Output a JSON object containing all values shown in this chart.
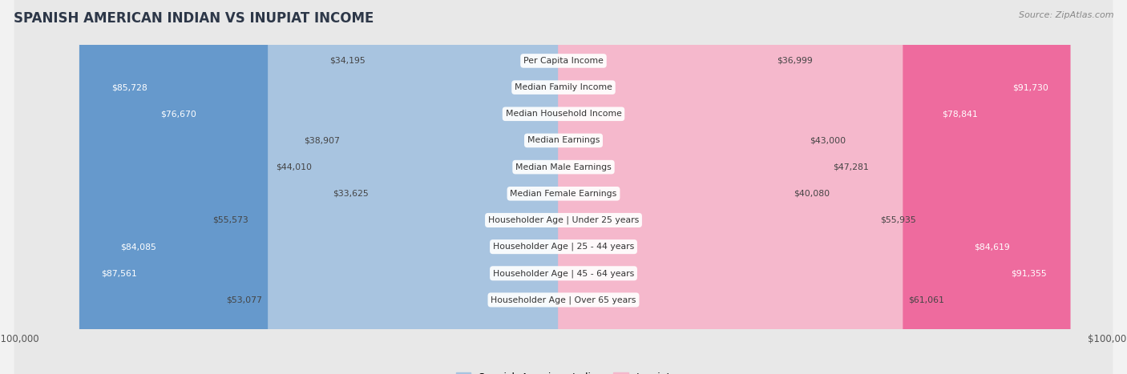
{
  "title": "SPANISH AMERICAN INDIAN VS INUPIAT INCOME",
  "source": "Source: ZipAtlas.com",
  "categories": [
    "Per Capita Income",
    "Median Family Income",
    "Median Household Income",
    "Median Earnings",
    "Median Male Earnings",
    "Median Female Earnings",
    "Householder Age | Under 25 years",
    "Householder Age | 25 - 44 years",
    "Householder Age | 45 - 64 years",
    "Householder Age | Over 65 years"
  ],
  "spanish_values": [
    34195,
    85728,
    76670,
    38907,
    44010,
    33625,
    55573,
    84085,
    87561,
    53077
  ],
  "inupiat_values": [
    36999,
    91730,
    78841,
    43000,
    47281,
    40080,
    55935,
    84619,
    91355,
    61061
  ],
  "spanish_labels": [
    "$34,195",
    "$85,728",
    "$76,670",
    "$38,907",
    "$44,010",
    "$33,625",
    "$55,573",
    "$84,085",
    "$87,561",
    "$53,077"
  ],
  "inupiat_labels": [
    "$36,999",
    "$91,730",
    "$78,841",
    "$43,000",
    "$47,281",
    "$40,080",
    "$55,935",
    "$84,619",
    "$91,355",
    "$61,061"
  ],
  "max_value": 100000,
  "spanish_light_color": "#a8c4e0",
  "spanish_dark_color": "#6699cc",
  "inupiat_light_color": "#f5b8cc",
  "inupiat_dark_color": "#ee6b9e",
  "bg_color": "#f2f2f2",
  "row_bg_light": "#fafafa",
  "row_bg_dark": "#e8e8e8",
  "label_spanish": "Spanish American Indian",
  "label_inupiat": "Inupiat",
  "dark_threshold": 70000
}
